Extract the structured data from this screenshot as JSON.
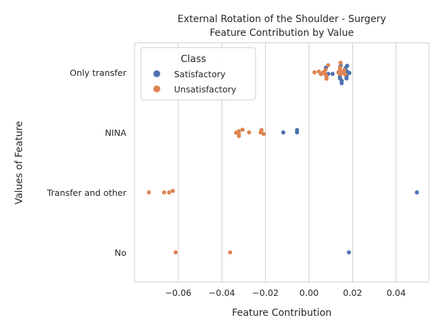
{
  "chart_data": {
    "type": "scatter",
    "subtype": "swarm",
    "title": "External Rotation of the Shoulder - Surgery",
    "subtitle": "Feature Contribution by Value",
    "xlabel": "Feature Contribution",
    "ylabel": "Values of Feature",
    "xlim": [
      -0.08,
      0.055
    ],
    "xticks": [
      -0.06,
      -0.04,
      -0.02,
      0.0,
      0.02,
      0.04
    ],
    "xtick_labels": [
      "−0.06",
      "−0.04",
      "−0.02",
      "0.00",
      "0.02",
      "0.04"
    ],
    "categories": [
      "Only transfer",
      "NINA",
      "Transfer and other",
      "No"
    ],
    "grid": true,
    "legend": {
      "title": "Class",
      "position": "upper-left",
      "entries": [
        {
          "name": "Satisfactory",
          "color": "#4c72b0"
        },
        {
          "name": "Unsatisfactory",
          "color": "#dd8452"
        }
      ]
    },
    "series": [
      {
        "name": "Satisfactory",
        "color": "#4c72b0",
        "points": [
          {
            "category": "Only transfer",
            "x": 0.0145,
            "y": 0.22
          },
          {
            "category": "Only transfer",
            "x": 0.0175,
            "y": 0.22
          },
          {
            "category": "Only transfer",
            "x": 0.0078,
            "y": 0.16
          },
          {
            "category": "Only transfer",
            "x": 0.0168,
            "y": 0.15
          },
          {
            "category": "Only transfer",
            "x": 0.0175,
            "y": 0.03
          },
          {
            "category": "Only transfer",
            "x": 0.0185,
            "y": -0.02
          },
          {
            "category": "Only transfer",
            "x": 0.0088,
            "y": -0.05
          },
          {
            "category": "Only transfer",
            "x": 0.0108,
            "y": -0.05
          },
          {
            "category": "Only transfer",
            "x": 0.0142,
            "y": -0.12
          },
          {
            "category": "Only transfer",
            "x": 0.0172,
            "y": -0.12
          },
          {
            "category": "Only transfer",
            "x": 0.0142,
            "y": -0.2
          },
          {
            "category": "Only transfer",
            "x": 0.0172,
            "y": -0.2
          },
          {
            "category": "Only transfer",
            "x": 0.015,
            "y": -0.28
          },
          {
            "category": "Only transfer",
            "x": 0.015,
            "y": -0.36
          },
          {
            "category": "NINA",
            "x": -0.0055,
            "y": 0.08
          },
          {
            "category": "NINA",
            "x": -0.0055,
            "y": 0.0
          },
          {
            "category": "NINA",
            "x": -0.0118,
            "y": 0.0
          },
          {
            "category": "Transfer and other",
            "x": 0.0495,
            "y": 0.0
          },
          {
            "category": "No",
            "x": 0.0183,
            "y": 0.0
          }
        ]
      },
      {
        "name": "Unsatisfactory",
        "color": "#dd8452",
        "points": [
          {
            "category": "Only transfer",
            "x": 0.0145,
            "y": 0.32
          },
          {
            "category": "Only transfer",
            "x": 0.0088,
            "y": 0.24
          },
          {
            "category": "Only transfer",
            "x": 0.0142,
            "y": 0.16
          },
          {
            "category": "Only transfer",
            "x": 0.0075,
            "y": 0.08
          },
          {
            "category": "Only transfer",
            "x": 0.0142,
            "y": 0.08
          },
          {
            "category": "Only transfer",
            "x": 0.0162,
            "y": 0.08
          },
          {
            "category": "Only transfer",
            "x": 0.0025,
            "y": 0.0
          },
          {
            "category": "Only transfer",
            "x": 0.0045,
            "y": 0.03
          },
          {
            "category": "Only transfer",
            "x": 0.0065,
            "y": 0.0
          },
          {
            "category": "Only transfer",
            "x": 0.0135,
            "y": 0.0
          },
          {
            "category": "Only transfer",
            "x": 0.0155,
            "y": 0.0
          },
          {
            "category": "Only transfer",
            "x": 0.0055,
            "y": -0.06
          },
          {
            "category": "Only transfer",
            "x": 0.0075,
            "y": -0.06
          },
          {
            "category": "Only transfer",
            "x": 0.0145,
            "y": -0.06
          },
          {
            "category": "Only transfer",
            "x": 0.0165,
            "y": -0.06
          },
          {
            "category": "Only transfer",
            "x": 0.008,
            "y": -0.13
          },
          {
            "category": "Only transfer",
            "x": 0.008,
            "y": -0.21
          },
          {
            "category": "NINA",
            "x": -0.0305,
            "y": 0.09
          },
          {
            "category": "NINA",
            "x": -0.0218,
            "y": 0.08
          },
          {
            "category": "NINA",
            "x": -0.0322,
            "y": 0.04
          },
          {
            "category": "NINA",
            "x": -0.0335,
            "y": -0.01
          },
          {
            "category": "NINA",
            "x": -0.0275,
            "y": 0.0
          },
          {
            "category": "NINA",
            "x": -0.0222,
            "y": 0.0
          },
          {
            "category": "NINA",
            "x": -0.0322,
            "y": -0.05
          },
          {
            "category": "NINA",
            "x": -0.0208,
            "y": -0.05
          },
          {
            "category": "NINA",
            "x": -0.0322,
            "y": -0.12
          },
          {
            "category": "Transfer and other",
            "x": -0.0625,
            "y": 0.05
          },
          {
            "category": "Transfer and other",
            "x": -0.0735,
            "y": 0.0
          },
          {
            "category": "Transfer and other",
            "x": -0.0665,
            "y": 0.0
          },
          {
            "category": "Transfer and other",
            "x": -0.0642,
            "y": 0.0
          },
          {
            "category": "No",
            "x": -0.0612,
            "y": 0.0
          },
          {
            "category": "No",
            "x": -0.0362,
            "y": 0.0
          }
        ]
      }
    ]
  }
}
